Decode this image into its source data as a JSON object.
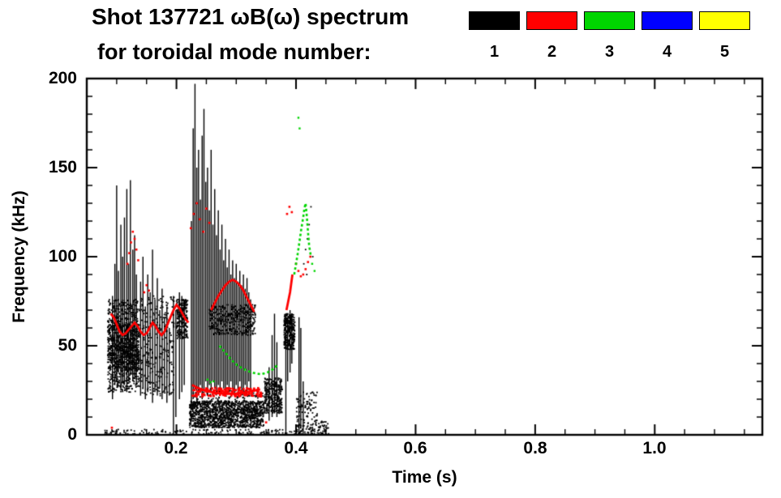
{
  "chart_data": {
    "type": "scatter",
    "title": "Shot 137721 ωB(ω) spectrum",
    "subtitle": "for toroidal mode number:",
    "xlabel": "Time (s)",
    "ylabel": "Frequency (kHz)",
    "xlim": [
      0.05,
      1.18
    ],
    "ylim": [
      0,
      200
    ],
    "x_tick_values": [
      0.2,
      0.4,
      0.6,
      0.8,
      1.0
    ],
    "x_tick_labels": [
      "0.2",
      "0.4",
      "0.6",
      "0.8",
      "1.0"
    ],
    "x_minor_step": 0.05,
    "y_tick_values": [
      0,
      50,
      100,
      150,
      200
    ],
    "y_tick_labels": [
      "0",
      "50",
      "100",
      "150",
      "200"
    ],
    "y_minor_step": 10,
    "legend": {
      "position": "top-right",
      "entries": [
        {
          "label": "1",
          "color": "#000000"
        },
        {
          "label": "2",
          "color": "#ff0000"
        },
        {
          "label": "3",
          "color": "#00d500"
        },
        {
          "label": "4",
          "color": "#0000ff"
        },
        {
          "label": "5",
          "color": "#ffff00"
        }
      ]
    },
    "series": [
      {
        "name": "toroidal mode n=1",
        "mode": 1,
        "color": "#000000",
        "dot": 1.8,
        "line": 1.4,
        "bands": [
          [
            0.085,
            0.138,
            36,
            62,
            900
          ],
          [
            0.085,
            0.138,
            24,
            36,
            170
          ],
          [
            0.085,
            0.138,
            62,
            76,
            190
          ],
          [
            0.14,
            0.196,
            22,
            78,
            270
          ],
          [
            0.2,
            0.219,
            54,
            76,
            240
          ],
          [
            0.222,
            0.346,
            4,
            19,
            1400
          ],
          [
            0.225,
            0.345,
            19,
            26,
            90
          ],
          [
            0.255,
            0.332,
            56,
            73,
            400
          ],
          [
            0.347,
            0.377,
            12,
            32,
            320
          ],
          [
            0.38,
            0.398,
            48,
            68,
            300
          ],
          [
            0.075,
            0.455,
            0,
            3,
            170
          ],
          [
            0.4,
            0.436,
            0,
            24,
            140
          ],
          [
            0.437,
            0.455,
            0,
            8,
            40
          ]
        ],
        "segments": [
          [
            0.093,
            20,
            78
          ],
          [
            0.097,
            28,
            96
          ],
          [
            0.1,
            30,
            140
          ],
          [
            0.103,
            35,
            92
          ],
          [
            0.107,
            25,
            118
          ],
          [
            0.11,
            30,
            100
          ],
          [
            0.113,
            28,
            122
          ],
          [
            0.117,
            24,
            138
          ],
          [
            0.12,
            30,
            96
          ],
          [
            0.123,
            35,
            143
          ],
          [
            0.127,
            30,
            104
          ],
          [
            0.13,
            33,
            112
          ],
          [
            0.133,
            28,
            90
          ],
          [
            0.14,
            22,
            86
          ],
          [
            0.144,
            26,
            100
          ],
          [
            0.148,
            20,
            72
          ],
          [
            0.152,
            24,
            90
          ],
          [
            0.156,
            28,
            80
          ],
          [
            0.16,
            18,
            104
          ],
          [
            0.164,
            24,
            76
          ],
          [
            0.168,
            22,
            88
          ],
          [
            0.172,
            26,
            70
          ],
          [
            0.176,
            20,
            82
          ],
          [
            0.18,
            24,
            66
          ],
          [
            0.184,
            18,
            72
          ],
          [
            0.188,
            22,
            60
          ],
          [
            0.195,
            0,
            78
          ],
          [
            0.199,
            10,
            70
          ],
          [
            0.205,
            20,
            80
          ],
          [
            0.209,
            24,
            78
          ],
          [
            0.213,
            28,
            76
          ],
          [
            0.225,
            15,
            120
          ],
          [
            0.228,
            20,
            172
          ],
          [
            0.231,
            25,
            197
          ],
          [
            0.234,
            18,
            150
          ],
          [
            0.237,
            22,
            160
          ],
          [
            0.24,
            28,
            132
          ],
          [
            0.243,
            20,
            168
          ],
          [
            0.246,
            25,
            183
          ],
          [
            0.249,
            30,
            142
          ],
          [
            0.252,
            22,
            150
          ],
          [
            0.255,
            28,
            126
          ],
          [
            0.258,
            24,
            160
          ],
          [
            0.261,
            30,
            118
          ],
          [
            0.264,
            26,
            138
          ],
          [
            0.267,
            22,
            112
          ],
          [
            0.27,
            28,
            126
          ],
          [
            0.273,
            24,
            104
          ],
          [
            0.276,
            30,
            118
          ],
          [
            0.279,
            26,
            98
          ],
          [
            0.282,
            22,
            110
          ],
          [
            0.285,
            28,
            94
          ],
          [
            0.288,
            24,
            104
          ],
          [
            0.291,
            30,
            90
          ],
          [
            0.294,
            26,
            98
          ],
          [
            0.297,
            22,
            88
          ],
          [
            0.3,
            28,
            96
          ],
          [
            0.303,
            24,
            86
          ],
          [
            0.306,
            30,
            92
          ],
          [
            0.309,
            26,
            84
          ],
          [
            0.312,
            22,
            90
          ],
          [
            0.315,
            28,
            82
          ],
          [
            0.318,
            24,
            88
          ],
          [
            0.321,
            30,
            80
          ],
          [
            0.324,
            26,
            76
          ],
          [
            0.355,
            8,
            38
          ],
          [
            0.36,
            10,
            56
          ],
          [
            0.364,
            12,
            68
          ],
          [
            0.368,
            10,
            52
          ],
          [
            0.383,
            0,
            68
          ],
          [
            0.386,
            30,
            66
          ],
          [
            0.39,
            35,
            70
          ],
          [
            0.393,
            40,
            68
          ],
          [
            0.405,
            0,
            66
          ],
          [
            0.408,
            5,
            60
          ],
          [
            0.412,
            0,
            30
          ]
        ],
        "points": [
          [
            0.413,
            96
          ],
          [
            0.416,
            104
          ],
          [
            0.419,
            110
          ],
          [
            0.422,
            118
          ],
          [
            0.425,
            128
          ],
          [
            0.418,
            90
          ],
          [
            0.428,
            100
          ],
          [
            0.43,
            15
          ],
          [
            0.433,
            8
          ],
          [
            0.44,
            4
          ],
          [
            0.445,
            2
          ]
        ]
      },
      {
        "name": "toroidal mode n=2",
        "mode": 2,
        "color": "#ff0000",
        "dot": 2.6,
        "line": 1.8,
        "bands": [
          [
            0.226,
            0.342,
            21.5,
            26.5,
            160
          ]
        ],
        "curves": [
          [
            [
              0.09,
              68
            ],
            [
              0.095,
              66
            ],
            [
              0.1,
              62
            ],
            [
              0.105,
              58
            ],
            [
              0.11,
              56
            ],
            [
              0.115,
              57
            ],
            [
              0.12,
              59
            ],
            [
              0.125,
              61
            ],
            [
              0.13,
              63
            ],
            [
              0.135,
              61
            ],
            [
              0.14,
              58
            ],
            [
              0.145,
              56
            ],
            [
              0.15,
              57
            ],
            [
              0.155,
              60
            ],
            [
              0.16,
              63
            ],
            [
              0.165,
              61
            ],
            [
              0.17,
              58
            ],
            [
              0.175,
              56
            ],
            [
              0.18,
              58
            ],
            [
              0.185,
              62
            ],
            [
              0.19,
              66
            ],
            [
              0.195,
              70
            ],
            [
              0.2,
              73
            ],
            [
              0.205,
              71
            ],
            [
              0.21,
              68
            ],
            [
              0.215,
              65
            ],
            [
              0.22,
              63
            ]
          ],
          [
            [
              0.258,
              70
            ],
            [
              0.264,
              74
            ],
            [
              0.27,
              78
            ],
            [
              0.276,
              81
            ],
            [
              0.282,
              84
            ],
            [
              0.288,
              86
            ],
            [
              0.294,
              87
            ],
            [
              0.3,
              86
            ],
            [
              0.306,
              84
            ],
            [
              0.312,
              81
            ],
            [
              0.318,
              77
            ],
            [
              0.324,
              73
            ],
            [
              0.33,
              69
            ]
          ],
          [
            [
              0.226,
              28
            ],
            [
              0.238,
              26
            ],
            [
              0.252,
              24.5
            ],
            [
              0.266,
              23.5
            ],
            [
              0.28,
              23
            ],
            [
              0.295,
              23
            ],
            [
              0.31,
              23.5
            ],
            [
              0.325,
              24.5
            ],
            [
              0.34,
              25.5
            ]
          ],
          [
            [
              0.384,
              70
            ],
            [
              0.387,
              75
            ],
            [
              0.39,
              80
            ],
            [
              0.392,
              85
            ],
            [
              0.394,
              90
            ]
          ]
        ],
        "points": [
          [
            0.118,
            96
          ],
          [
            0.121,
            102
          ],
          [
            0.124,
            108
          ],
          [
            0.127,
            114
          ],
          [
            0.13,
            110
          ],
          [
            0.133,
            104
          ],
          [
            0.136,
            98
          ],
          [
            0.146,
            80
          ],
          [
            0.15,
            84
          ],
          [
            0.154,
            81
          ],
          [
            0.224,
            116
          ],
          [
            0.229,
            124
          ],
          [
            0.234,
            130
          ],
          [
            0.239,
            121
          ],
          [
            0.245,
            114
          ],
          [
            0.25,
            127
          ],
          [
            0.255,
            119
          ],
          [
            0.385,
            124
          ],
          [
            0.389,
            128
          ],
          [
            0.393,
            125
          ],
          [
            0.4,
            96
          ],
          [
            0.404,
            92
          ],
          [
            0.408,
            89
          ],
          [
            0.412,
            90
          ],
          [
            0.416,
            93
          ],
          [
            0.42,
            97
          ],
          [
            0.424,
            100
          ],
          [
            0.092,
            4
          ],
          [
            0.35,
            7
          ]
        ]
      },
      {
        "name": "toroidal mode n=3",
        "mode": 3,
        "color": "#00d500",
        "dot": 2.4,
        "line": 1.6,
        "dash": [
          3,
          3
        ],
        "curves": [
          [
            [
              0.272,
              50
            ],
            [
              0.282,
              46
            ],
            [
              0.292,
              42
            ],
            [
              0.302,
              39
            ],
            [
              0.312,
              37
            ],
            [
              0.322,
              35.5
            ],
            [
              0.332,
              34.5
            ],
            [
              0.342,
              34
            ],
            [
              0.352,
              35
            ],
            [
              0.362,
              37
            ],
            [
              0.37,
              39.5
            ]
          ],
          [
            [
              0.397,
              90
            ],
            [
              0.4,
              96
            ],
            [
              0.403,
              102
            ],
            [
              0.406,
              109
            ],
            [
              0.409,
              116
            ],
            [
              0.412,
              122
            ],
            [
              0.414,
              127
            ],
            [
              0.416,
              130
            ],
            [
              0.418,
              123
            ],
            [
              0.42,
              114
            ],
            [
              0.422,
              106
            ],
            [
              0.425,
              100
            ]
          ]
        ],
        "points": [
          [
            0.252,
            31
          ],
          [
            0.257,
            29.5
          ],
          [
            0.262,
            30
          ],
          [
            0.404,
            178
          ],
          [
            0.406,
            172
          ],
          [
            0.427,
            96
          ],
          [
            0.431,
            92
          ]
        ]
      },
      {
        "name": "toroidal mode n=4",
        "mode": 4,
        "color": "#0000ff",
        "dot": 2.4,
        "points": []
      },
      {
        "name": "toroidal mode n=5",
        "mode": 5,
        "color": "#ffff00",
        "dot": 2.4,
        "points": []
      }
    ]
  }
}
